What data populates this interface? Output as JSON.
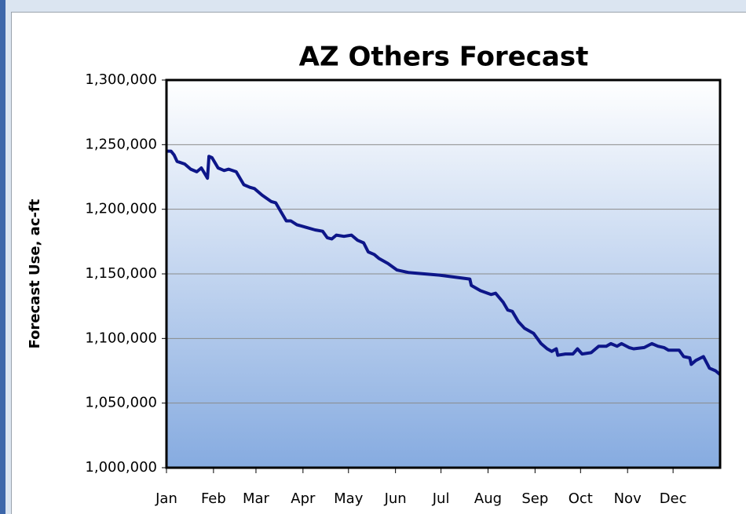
{
  "chart_data": {
    "type": "line",
    "title": "AZ Others Forecast",
    "y_label": "Forecast Use, ac-ft",
    "color": "#0d1689",
    "x": [
      0,
      3,
      5,
      7,
      12,
      16,
      20,
      23,
      27,
      28,
      30,
      34,
      38,
      41,
      46,
      51,
      55,
      58,
      63,
      69,
      72,
      76,
      79,
      82,
      86,
      92,
      98,
      103,
      106,
      109,
      112,
      117,
      122,
      126,
      130,
      133,
      137,
      140,
      146,
      152,
      160,
      180,
      200,
      201,
      207,
      214,
      217,
      222,
      225,
      228,
      232,
      236,
      242,
      247,
      251,
      254,
      257,
      258,
      263,
      268,
      271,
      274,
      280,
      285,
      290,
      293,
      297,
      300,
      305,
      308,
      315,
      320,
      324,
      328,
      331,
      338,
      341,
      345,
      346,
      349,
      354,
      358,
      362,
      365
    ],
    "values": [
      1245000,
      1245000,
      1242000,
      1237000,
      1235000,
      1231000,
      1229000,
      1232000,
      1224000,
      1241000,
      1240000,
      1232000,
      1230000,
      1231000,
      1229000,
      1219000,
      1217000,
      1216000,
      1211000,
      1206000,
      1205000,
      1197000,
      1191000,
      1191000,
      1188000,
      1186000,
      1184000,
      1183000,
      1178000,
      1177000,
      1180000,
      1179000,
      1180000,
      1176000,
      1174000,
      1167000,
      1165000,
      1162000,
      1158000,
      1153000,
      1151000,
      1149000,
      1146000,
      1141000,
      1137000,
      1134000,
      1135000,
      1128000,
      1122000,
      1121000,
      1113000,
      1108000,
      1104000,
      1096000,
      1092000,
      1090000,
      1092000,
      1087000,
      1088000,
      1088000,
      1092000,
      1088000,
      1089000,
      1094000,
      1094000,
      1096000,
      1094000,
      1096000,
      1093000,
      1092000,
      1093000,
      1096000,
      1094000,
      1093000,
      1091000,
      1091000,
      1086000,
      1085000,
      1080000,
      1083000,
      1086000,
      1077000,
      1075000,
      1072000
    ],
    "xlim": [
      0,
      365
    ],
    "xticks": [
      {
        "value": 0,
        "label": "Jan"
      },
      {
        "value": 31,
        "label": "Feb"
      },
      {
        "value": 59,
        "label": "Mar"
      },
      {
        "value": 90,
        "label": "Apr"
      },
      {
        "value": 120,
        "label": "May"
      },
      {
        "value": 151,
        "label": "Jun"
      },
      {
        "value": 181,
        "label": "Jul"
      },
      {
        "value": 212,
        "label": "Aug"
      },
      {
        "value": 243,
        "label": "Sep"
      },
      {
        "value": 273,
        "label": "Oct"
      },
      {
        "value": 304,
        "label": "Nov"
      },
      {
        "value": 334,
        "label": "Dec"
      }
    ],
    "ylim": [
      1000000,
      1300000
    ],
    "yticks": [
      {
        "value": 1000000,
        "label": "1,000,000"
      },
      {
        "value": 1050000,
        "label": "1,050,000"
      },
      {
        "value": 1100000,
        "label": "1,100,000"
      },
      {
        "value": 1150000,
        "label": "1,150,000"
      },
      {
        "value": 1200000,
        "label": "1,200,000"
      },
      {
        "value": 1250000,
        "label": "1,250,000"
      },
      {
        "value": 1300000,
        "label": "1,300,000"
      }
    ],
    "grid": true
  }
}
